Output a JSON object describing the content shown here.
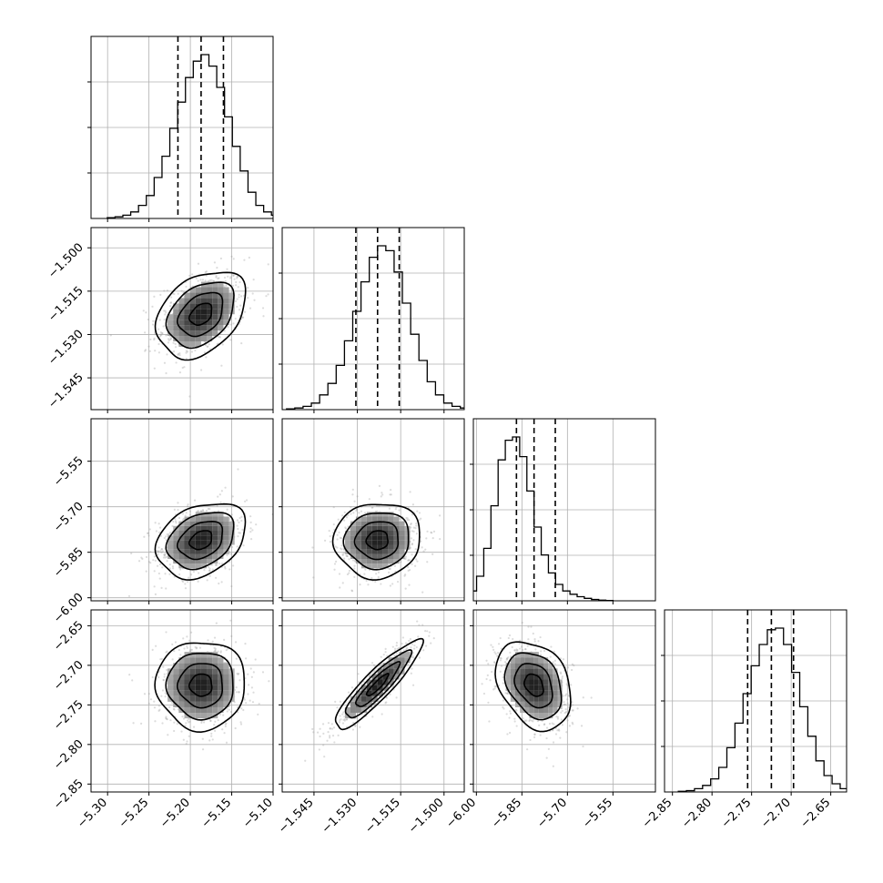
{
  "chart_data": {
    "type": "corner",
    "parameters": [
      {
        "xlim": [
          -5.32,
          -5.1
        ],
        "ticks": [
          -5.3,
          -5.25,
          -5.2,
          -5.15,
          -5.1
        ],
        "tick_labels": [
          "−5.30",
          "−5.25",
          "−5.20",
          "−5.15",
          "−5.10"
        ],
        "quantiles": [
          -5.215,
          -5.187,
          -5.16
        ],
        "mean": -5.187,
        "sigma": 0.027
      },
      {
        "xlim": [
          -1.556,
          -1.493
        ],
        "ticks": [
          -1.545,
          -1.53,
          -1.515,
          -1.5
        ],
        "tick_labels": [
          "−1.545",
          "−1.530",
          "−1.515",
          "−1.500"
        ],
        "quantiles": [
          -1.5305,
          -1.523,
          -1.5155
        ],
        "mean": -1.523,
        "sigma": 0.0075
      },
      {
        "xlim": [
          -6.01,
          -5.41
        ],
        "ticks": [
          -6.0,
          -5.85,
          -5.7,
          -5.55
        ],
        "tick_labels": [
          "−6.00",
          "−5.85",
          "−5.70",
          "−5.55"
        ],
        "quantiles": [
          -5.868,
          -5.81,
          -5.74
        ],
        "mean": -5.81,
        "sigma": 0.062
      },
      {
        "xlim": [
          -2.86,
          -2.63
        ],
        "ticks": [
          -2.85,
          -2.8,
          -2.75,
          -2.7,
          -2.65
        ],
        "tick_labels": [
          "−2.85",
          "−2.80",
          "−2.75",
          "−2.70",
          "−2.65"
        ],
        "quantiles": [
          -2.755,
          -2.725,
          -2.697
        ],
        "mean": -2.725,
        "sigma": 0.028
      }
    ],
    "correlations": {
      "1,0": 0.35,
      "2,0": 0.3,
      "2,1": 0.05,
      "3,0": 0.0,
      "3,1": 0.9,
      "3,2": -0.3
    },
    "histograms": [
      [
        0.005,
        0.01,
        0.02,
        0.04,
        0.08,
        0.14,
        0.25,
        0.38,
        0.55,
        0.71,
        0.86,
        0.96,
        1.0,
        0.93,
        0.8,
        0.62,
        0.44,
        0.29,
        0.16,
        0.08,
        0.04,
        0.02,
        0.01,
        0.005
      ],
      [
        0.005,
        0.01,
        0.02,
        0.04,
        0.09,
        0.16,
        0.27,
        0.42,
        0.6,
        0.78,
        0.93,
        1.0,
        0.97,
        0.84,
        0.65,
        0.46,
        0.3,
        0.17,
        0.09,
        0.04,
        0.02,
        0.01
      ],
      [
        0.0,
        0.02,
        0.06,
        0.15,
        0.32,
        0.58,
        0.86,
        0.98,
        1.0,
        0.88,
        0.67,
        0.45,
        0.28,
        0.17,
        0.1,
        0.06,
        0.04,
        0.025,
        0.015,
        0.008,
        0.004,
        0.002
      ],
      [
        0.004,
        0.008,
        0.02,
        0.04,
        0.08,
        0.15,
        0.27,
        0.42,
        0.6,
        0.77,
        0.9,
        0.99,
        1.0,
        0.9,
        0.73,
        0.52,
        0.34,
        0.19,
        0.1,
        0.05,
        0.02,
        0.01,
        0.005
      ]
    ],
    "grid": true,
    "contour_levels_sigma": [
      0.5,
      1.0,
      1.5,
      2.0
    ]
  }
}
